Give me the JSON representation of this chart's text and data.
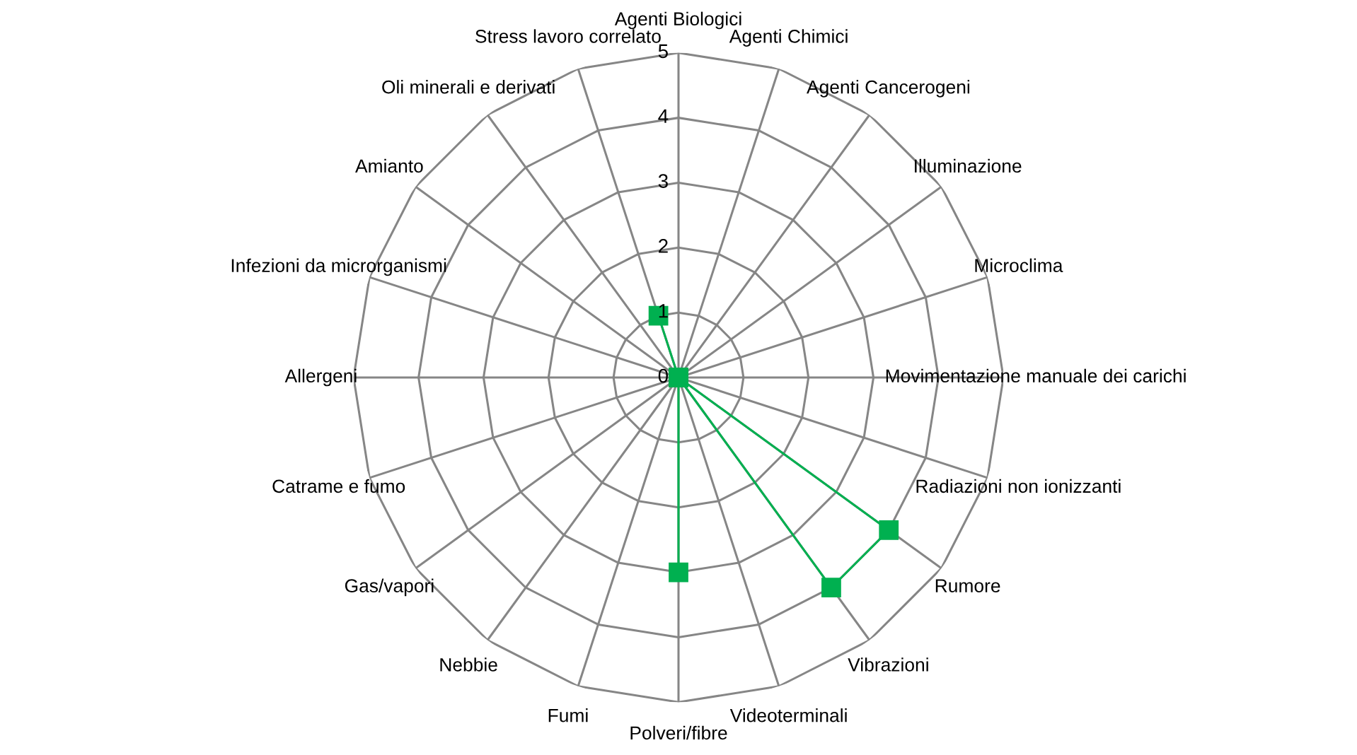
{
  "chart_data": {
    "type": "radar",
    "categories": [
      "Agenti Biologici",
      "Agenti Chimici",
      "Agenti Cancerogeni",
      "Illuminazione",
      "Microclima",
      "Movimentazione manuale dei carichi",
      "Radiazioni non ionizzanti",
      "Rumore",
      "Vibrazioni",
      "Videoterminali",
      "Polveri/fibre",
      "Fumi",
      "Nebbie",
      "Gas/vapori",
      "Catrame e fumo",
      "Allergeni",
      "Infezioni da microrganismi",
      "Amianto",
      "Oli minerali e derivati",
      "Stress lavoro correlato"
    ],
    "series": [
      {
        "color": "#00b050",
        "values": [
          0,
          0,
          0,
          0,
          0,
          0,
          0,
          4,
          4,
          0,
          3,
          0,
          0,
          0,
          0,
          0,
          0,
          0,
          0,
          1
        ]
      }
    ],
    "ylim": [
      0,
      5
    ],
    "yticks": [
      0,
      1,
      2,
      3,
      4,
      5
    ],
    "grid": true,
    "marker": "square",
    "line_style": "solid"
  }
}
